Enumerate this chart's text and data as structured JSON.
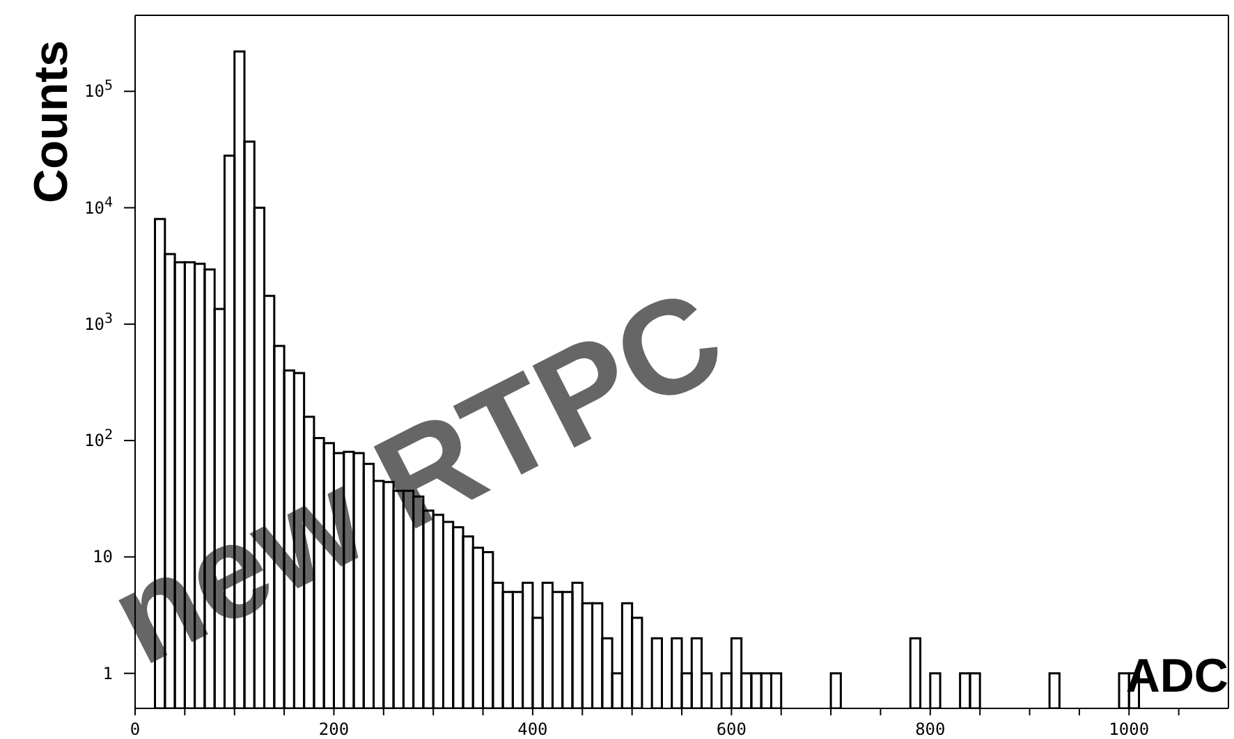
{
  "chart_data": {
    "type": "histogram",
    "xlabel": "ADC",
    "ylabel": "Counts",
    "annotations": [
      "new RTPC"
    ],
    "bins": [
      0,
      10,
      20,
      30,
      40,
      50,
      60,
      70,
      80,
      90,
      100,
      110,
      120,
      130,
      140,
      150,
      160,
      170,
      180,
      190,
      200,
      210,
      220,
      230,
      240,
      250,
      260,
      270,
      280,
      290,
      300,
      310,
      320,
      330,
      340,
      350,
      360,
      370,
      380,
      390,
      400,
      410,
      420,
      430,
      440,
      450,
      460,
      470,
      480,
      490,
      500,
      510,
      520,
      530,
      540,
      550,
      560,
      570,
      580,
      590,
      600,
      610,
      620,
      630,
      640,
      650,
      660,
      670,
      680,
      690,
      700,
      710,
      720,
      730,
      740,
      750,
      760,
      770,
      780,
      790,
      800,
      810,
      820,
      830,
      840,
      850,
      860,
      870,
      880,
      890,
      900,
      910,
      920,
      930,
      940,
      950,
      960,
      970,
      980,
      990,
      1000,
      1010,
      1020,
      1030,
      1040,
      1050,
      1060,
      1070,
      1080,
      1090,
      1100
    ],
    "values": [
      null,
      null,
      8000,
      4000,
      3400,
      3400,
      3300,
      2950,
      1350,
      28000,
      220000,
      37000,
      10000,
      1750,
      650,
      400,
      380,
      160,
      105,
      95,
      78,
      80,
      78,
      63,
      45,
      44,
      37,
      37,
      33,
      25,
      23,
      20,
      18,
      15,
      12,
      11,
      6,
      5,
      5,
      6,
      3,
      6,
      5,
      5,
      6,
      4,
      4,
      2,
      1,
      4,
      3,
      null,
      2,
      null,
      2,
      1,
      2,
      1,
      null,
      1,
      2,
      1,
      1,
      1,
      1,
      null,
      null,
      null,
      null,
      null,
      1,
      null,
      null,
      null,
      null,
      null,
      null,
      null,
      2,
      null,
      1,
      null,
      null,
      1,
      1,
      null,
      null,
      null,
      null,
      null,
      null,
      null,
      1,
      null,
      null,
      null,
      null,
      null,
      null,
      1,
      1,
      null,
      null,
      null,
      null,
      null,
      null,
      null,
      null,
      null
    ],
    "color": "#000000",
    "log": "y",
    "xlim": [
      0,
      1100
    ],
    "xticks": [
      {
        "value": 0,
        "label": "0"
      },
      {
        "value": 50,
        "label": null
      },
      {
        "value": 100,
        "label": null
      },
      {
        "value": 150,
        "label": null
      },
      {
        "value": 200,
        "label": "200"
      },
      {
        "value": 250,
        "label": null
      },
      {
        "value": 300,
        "label": null
      },
      {
        "value": 350,
        "label": null
      },
      {
        "value": 400,
        "label": "400"
      },
      {
        "value": 450,
        "label": null
      },
      {
        "value": 500,
        "label": null
      },
      {
        "value": 550,
        "label": null
      },
      {
        "value": 600,
        "label": "600"
      },
      {
        "value": 650,
        "label": null
      },
      {
        "value": 700,
        "label": null
      },
      {
        "value": 750,
        "label": null
      },
      {
        "value": 800,
        "label": "800"
      },
      {
        "value": 850,
        "label": null
      },
      {
        "value": 900,
        "label": null
      },
      {
        "value": 950,
        "label": null
      },
      {
        "value": 1000,
        "label": "1000"
      },
      {
        "value": 1050,
        "label": null
      }
    ],
    "ylim": [
      0.5,
      450000
    ],
    "yticks": [
      {
        "value": 1,
        "label": "1"
      },
      {
        "value": 10,
        "label": "10"
      },
      {
        "value": 100,
        "label": "10$^{2}$"
      },
      {
        "value": 1000,
        "label": "10$^{3}$"
      },
      {
        "value": 10000,
        "label": "10$^{4}$"
      },
      {
        "value": 100000,
        "label": "10$^{5}$"
      }
    ],
    "grid": false,
    "legend": false
  }
}
